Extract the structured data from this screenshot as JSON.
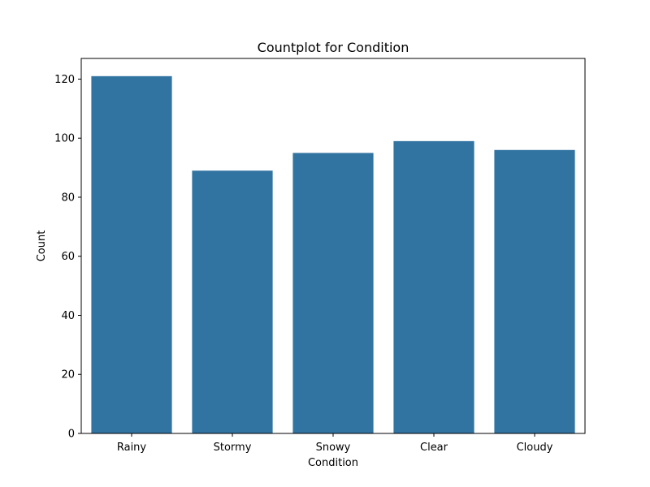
{
  "chart_data": {
    "type": "bar",
    "title": "Countplot for Condition",
    "xlabel": "Condition",
    "ylabel": "Count",
    "categories": [
      "Rainy",
      "Stormy",
      "Snowy",
      "Clear",
      "Cloudy"
    ],
    "values": [
      121,
      89,
      95,
      99,
      96
    ],
    "ylim": [
      0,
      127
    ],
    "yticks": [
      0,
      20,
      40,
      60,
      80,
      100,
      120
    ],
    "bar_color": "#3274a1",
    "grid": false,
    "legend": "none"
  }
}
